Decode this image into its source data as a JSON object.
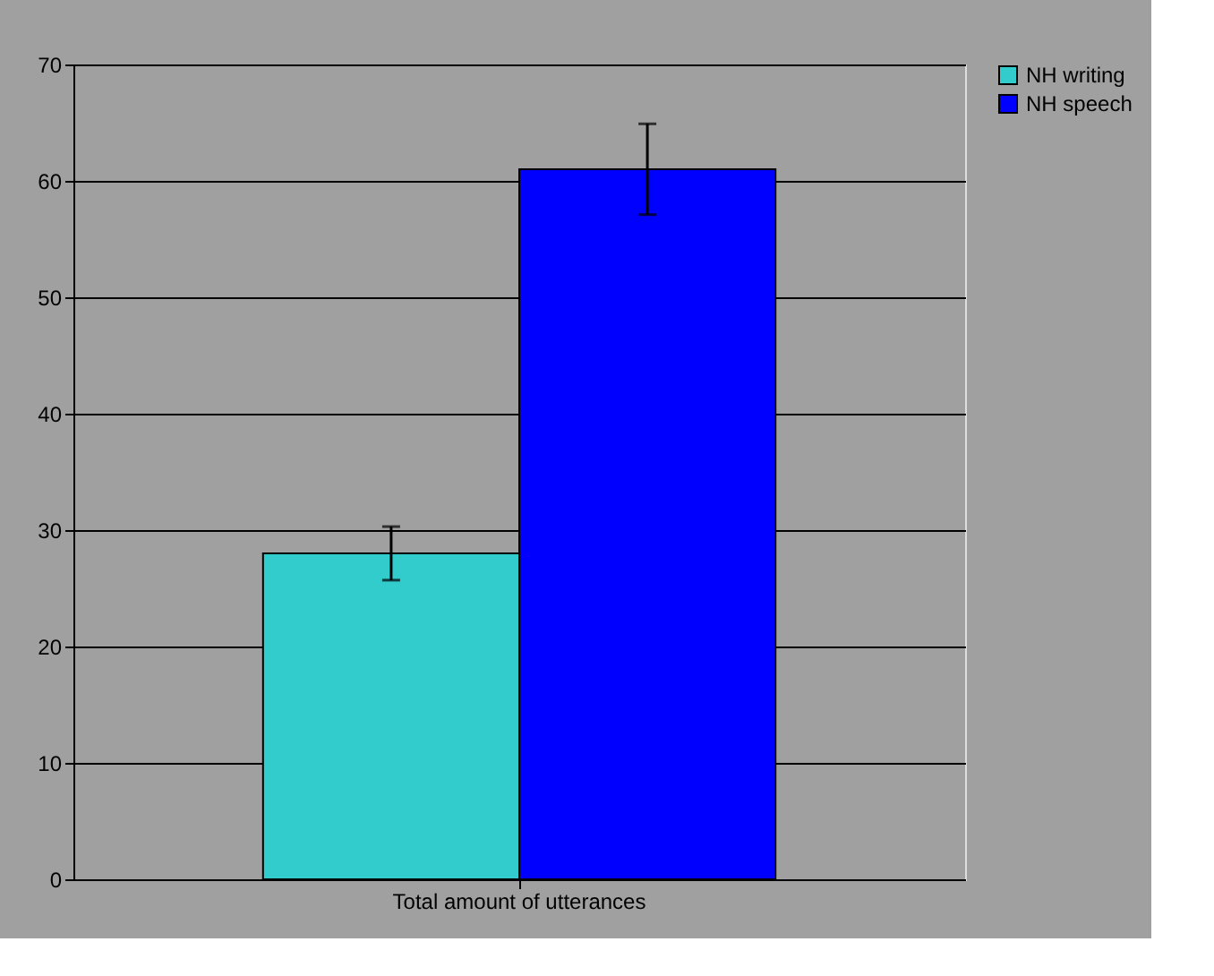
{
  "chart_data": {
    "type": "bar",
    "categories": [
      "Total amount of utterances"
    ],
    "series": [
      {
        "name": "NH writing",
        "color": "#33cccc",
        "values": [
          28
        ],
        "errors": [
          2.3
        ]
      },
      {
        "name": "NH speech",
        "color": "#0000ff",
        "values": [
          61
        ],
        "errors": [
          3.9
        ]
      }
    ],
    "ylim": [
      0,
      70
    ],
    "yticks": [
      0,
      10,
      20,
      30,
      40,
      50,
      60,
      70
    ],
    "grid": "y",
    "legend": "right"
  }
}
